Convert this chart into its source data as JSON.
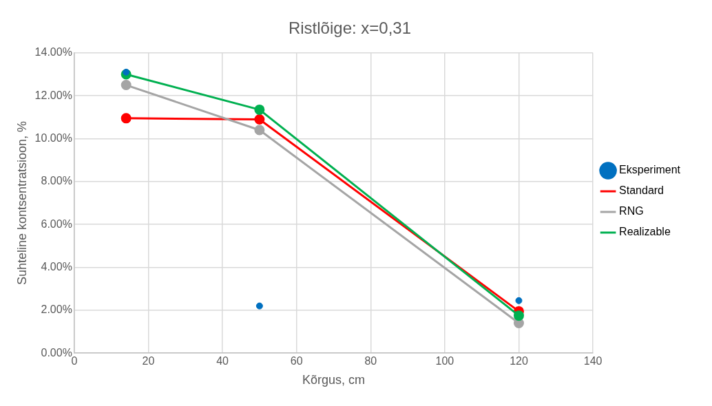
{
  "chart_data": {
    "type": "line",
    "title": "Ristlõige: x=0,31",
    "xlabel": "Kõrgus, cm",
    "ylabel": "Suhteline kontsentratsioon, %",
    "x": [
      14,
      50,
      120
    ],
    "series": [
      {
        "name": "Eksperiment",
        "type": "scatter",
        "color": "#0070c0",
        "values": [
          13.1,
          2.2,
          2.45
        ]
      },
      {
        "name": "Standard",
        "color": "#ff0000",
        "values": [
          10.95,
          10.9,
          1.95
        ]
      },
      {
        "name": "RNG",
        "color": "#a5a5a5",
        "values": [
          12.5,
          10.4,
          1.4
        ]
      },
      {
        "name": "Realizable",
        "color": "#00b050",
        "values": [
          13.0,
          11.35,
          1.75
        ]
      }
    ],
    "xlim": [
      0,
      140
    ],
    "xticks": [
      0,
      20,
      40,
      60,
      80,
      100,
      120,
      140
    ],
    "ylim": [
      0,
      14
    ],
    "yticks": [
      {
        "value": 0,
        "label": "0.00%"
      },
      {
        "value": 2,
        "label": "2.00%"
      },
      {
        "value": 4,
        "label": "4.00%"
      },
      {
        "value": 6,
        "label": "6.00%"
      },
      {
        "value": 8,
        "label": "8.00%"
      },
      {
        "value": 10,
        "label": "10.00%"
      },
      {
        "value": 12,
        "label": "12.00%"
      },
      {
        "value": 14,
        "label": "14.00%"
      }
    ],
    "grid": true,
    "legend": "right",
    "marker": "circle",
    "line_style": "solid"
  }
}
